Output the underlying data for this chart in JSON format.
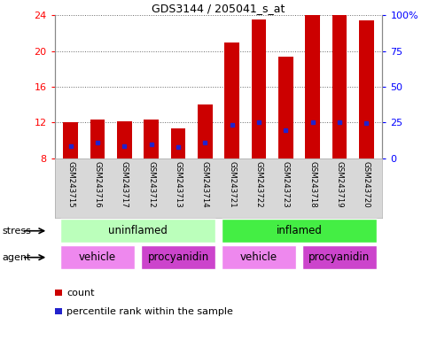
{
  "title": "GDS3144 / 205041_s_at",
  "samples": [
    "GSM243715",
    "GSM243716",
    "GSM243717",
    "GSM243712",
    "GSM243713",
    "GSM243714",
    "GSM243721",
    "GSM243722",
    "GSM243723",
    "GSM243718",
    "GSM243719",
    "GSM243720"
  ],
  "count_values": [
    12.0,
    12.3,
    12.15,
    12.3,
    11.3,
    14.0,
    21.0,
    23.5,
    19.4,
    24.0,
    24.0,
    23.4
  ],
  "percentile_values": [
    9.3,
    9.7,
    9.3,
    9.5,
    9.2,
    9.7,
    11.7,
    12.0,
    11.1,
    12.0,
    12.0,
    11.9
  ],
  "ymin": 8,
  "ymax": 24,
  "yticks_left": [
    8,
    12,
    16,
    20,
    24
  ],
  "yticks_right_labels": [
    "0",
    "25",
    "50",
    "75",
    "100%"
  ],
  "bar_color": "#cc0000",
  "blue_color": "#2222cc",
  "stress_uninflamed_color": "#bbffbb",
  "stress_inflamed_color": "#44ee44",
  "agent_vehicle_color": "#ee88ee",
  "agent_procyanidin_color": "#cc44cc",
  "stress_groups": [
    {
      "label": "uninflamed",
      "start": 0,
      "end": 6,
      "type": "uninflamed"
    },
    {
      "label": "inflamed",
      "start": 6,
      "end": 12,
      "type": "inflamed"
    }
  ],
  "agent_groups": [
    {
      "label": "vehicle",
      "start": 0,
      "end": 3,
      "type": "vehicle"
    },
    {
      "label": "procyanidin",
      "start": 3,
      "end": 6,
      "type": "procyanidin"
    },
    {
      "label": "vehicle",
      "start": 6,
      "end": 9,
      "type": "vehicle"
    },
    {
      "label": "procyanidin",
      "start": 9,
      "end": 12,
      "type": "procyanidin"
    }
  ],
  "legend_items": [
    {
      "color": "#cc0000",
      "label": "count"
    },
    {
      "color": "#2222cc",
      "label": "percentile rank within the sample"
    }
  ],
  "bar_width": 0.55,
  "bg_color": "#ffffff",
  "grid_color": "#666666",
  "tick_bg_color": "#d8d8d8"
}
